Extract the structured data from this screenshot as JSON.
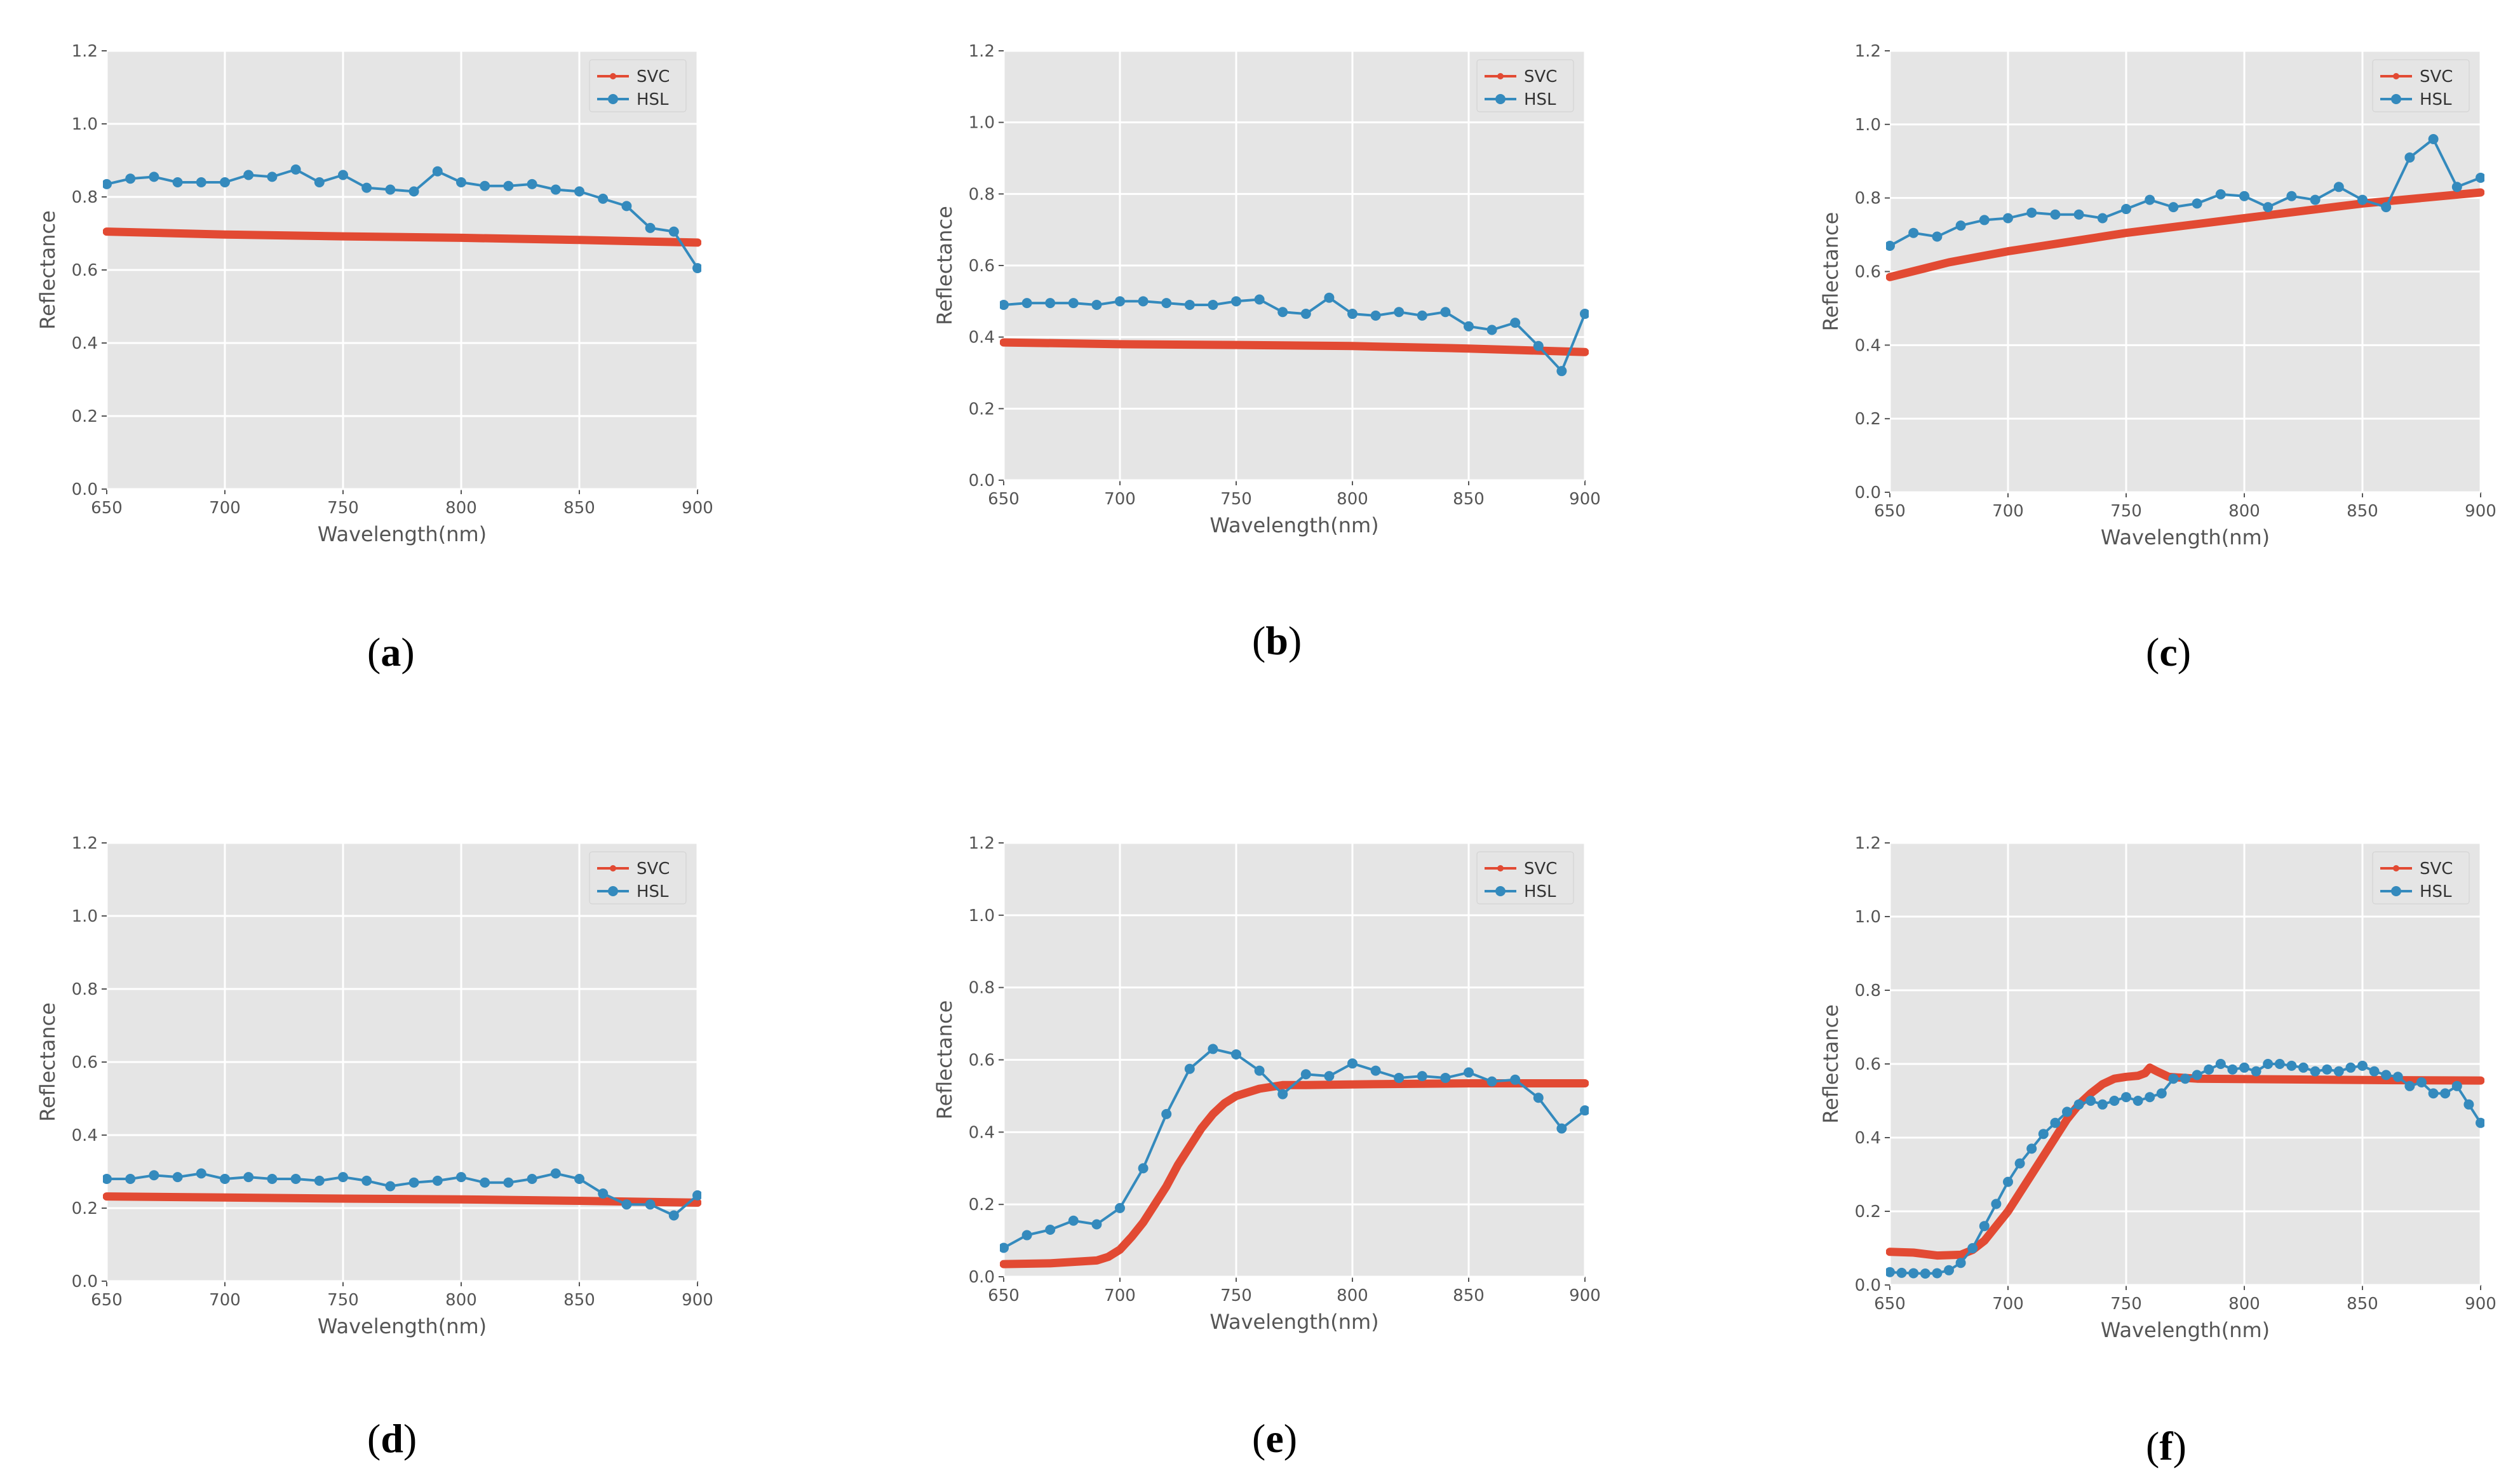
{
  "chart_data": [
    {
      "panel": "a",
      "type": "line",
      "title": "",
      "xlabel": "Wavelength(nm)",
      "ylabel": "Reflectance",
      "xlim": [
        650,
        900
      ],
      "ylim": [
        0.0,
        1.2
      ],
      "xticks": [
        "650",
        "700",
        "750",
        "800",
        "850",
        "900"
      ],
      "yticks": [
        "0.0",
        "0.2",
        "0.4",
        "0.6",
        "0.8",
        "1.0",
        "1.2"
      ],
      "grid": true,
      "legend_position": "top-right",
      "series": [
        {
          "name": "SVC",
          "color": "#e24a33",
          "style": "dense",
          "x": [
            650,
            700,
            750,
            800,
            850,
            900
          ],
          "y": [
            0.705,
            0.697,
            0.692,
            0.688,
            0.682,
            0.675
          ]
        },
        {
          "name": "HSL",
          "color": "#348abd",
          "style": "markers",
          "x": [
            650,
            660,
            670,
            680,
            690,
            700,
            710,
            720,
            730,
            740,
            750,
            760,
            770,
            780,
            790,
            800,
            810,
            820,
            830,
            840,
            850,
            860,
            870,
            880,
            890,
            900
          ],
          "y": [
            0.835,
            0.85,
            0.855,
            0.84,
            0.84,
            0.84,
            0.86,
            0.855,
            0.875,
            0.84,
            0.86,
            0.825,
            0.82,
            0.815,
            0.87,
            0.84,
            0.83,
            0.83,
            0.835,
            0.82,
            0.815,
            0.795,
            0.775,
            0.715,
            0.705,
            0.605
          ]
        }
      ]
    },
    {
      "panel": "b",
      "type": "line",
      "title": "",
      "xlabel": "Wavelength(nm)",
      "ylabel": "Reflectance",
      "xlim": [
        650,
        900
      ],
      "ylim": [
        0.0,
        1.2
      ],
      "xticks": [
        "650",
        "700",
        "750",
        "800",
        "850",
        "900"
      ],
      "yticks": [
        "0.0",
        "0.2",
        "0.4",
        "0.6",
        "0.8",
        "1.0",
        "1.2"
      ],
      "grid": true,
      "legend_position": "top-right",
      "series": [
        {
          "name": "SVC",
          "color": "#e24a33",
          "style": "dense",
          "x": [
            650,
            700,
            750,
            800,
            850,
            900
          ],
          "y": [
            0.385,
            0.38,
            0.378,
            0.375,
            0.368,
            0.358
          ]
        },
        {
          "name": "HSL",
          "color": "#348abd",
          "style": "markers",
          "x": [
            650,
            660,
            670,
            680,
            690,
            700,
            710,
            720,
            730,
            740,
            750,
            760,
            770,
            780,
            790,
            800,
            810,
            820,
            830,
            840,
            850,
            860,
            870,
            880,
            890,
            900
          ],
          "y": [
            0.49,
            0.495,
            0.495,
            0.495,
            0.49,
            0.5,
            0.5,
            0.495,
            0.49,
            0.49,
            0.5,
            0.505,
            0.47,
            0.465,
            0.51,
            0.465,
            0.46,
            0.47,
            0.46,
            0.47,
            0.43,
            0.42,
            0.44,
            0.375,
            0.305,
            0.465
          ]
        }
      ]
    },
    {
      "panel": "c",
      "type": "line",
      "title": "",
      "xlabel": "Wavelength(nm)",
      "ylabel": "Reflectance",
      "xlim": [
        650,
        900
      ],
      "ylim": [
        0.0,
        1.2
      ],
      "xticks": [
        "650",
        "700",
        "750",
        "800",
        "850",
        "900"
      ],
      "yticks": [
        "0.0",
        "0.2",
        "0.4",
        "0.6",
        "0.8",
        "1.0",
        "1.2"
      ],
      "grid": true,
      "legend_position": "top-right",
      "series": [
        {
          "name": "SVC",
          "color": "#e24a33",
          "style": "dense",
          "x": [
            650,
            675,
            700,
            725,
            750,
            775,
            800,
            825,
            850,
            875,
            900
          ],
          "y": [
            0.585,
            0.625,
            0.655,
            0.68,
            0.705,
            0.725,
            0.745,
            0.765,
            0.785,
            0.8,
            0.815
          ]
        },
        {
          "name": "HSL",
          "color": "#348abd",
          "style": "markers",
          "x": [
            650,
            660,
            670,
            680,
            690,
            700,
            710,
            720,
            730,
            740,
            750,
            760,
            770,
            780,
            790,
            800,
            810,
            820,
            830,
            840,
            850,
            860,
            870,
            880,
            890,
            900
          ],
          "y": [
            0.67,
            0.705,
            0.695,
            0.725,
            0.74,
            0.745,
            0.76,
            0.755,
            0.755,
            0.745,
            0.77,
            0.795,
            0.775,
            0.785,
            0.81,
            0.805,
            0.775,
            0.805,
            0.795,
            0.83,
            0.795,
            0.775,
            0.91,
            0.96,
            0.83,
            0.855
          ]
        }
      ]
    },
    {
      "panel": "d",
      "type": "line",
      "title": "",
      "xlabel": "Wavelength(nm)",
      "ylabel": "Reflectance",
      "xlim": [
        650,
        900
      ],
      "ylim": [
        0.0,
        1.2
      ],
      "xticks": [
        "650",
        "700",
        "750",
        "800",
        "850",
        "900"
      ],
      "yticks": [
        "0.0",
        "0.2",
        "0.4",
        "0.6",
        "0.8",
        "1.0",
        "1.2"
      ],
      "grid": true,
      "legend_position": "top-right",
      "series": [
        {
          "name": "SVC",
          "color": "#e24a33",
          "style": "dense",
          "x": [
            650,
            700,
            750,
            800,
            850,
            900
          ],
          "y": [
            0.232,
            0.229,
            0.226,
            0.224,
            0.22,
            0.215
          ]
        },
        {
          "name": "HSL",
          "color": "#348abd",
          "style": "markers",
          "x": [
            650,
            660,
            670,
            680,
            690,
            700,
            710,
            720,
            730,
            740,
            750,
            760,
            770,
            780,
            790,
            800,
            810,
            820,
            830,
            840,
            850,
            860,
            870,
            880,
            890,
            900
          ],
          "y": [
            0.28,
            0.28,
            0.29,
            0.285,
            0.295,
            0.28,
            0.285,
            0.28,
            0.28,
            0.275,
            0.285,
            0.275,
            0.26,
            0.27,
            0.275,
            0.285,
            0.27,
            0.27,
            0.28,
            0.295,
            0.28,
            0.24,
            0.21,
            0.21,
            0.18,
            0.235
          ]
        }
      ]
    },
    {
      "panel": "e",
      "type": "line",
      "title": "",
      "xlabel": "Wavelength(nm)",
      "ylabel": "Reflectance",
      "xlim": [
        650,
        900
      ],
      "ylim": [
        0.0,
        1.2
      ],
      "xticks": [
        "650",
        "700",
        "750",
        "800",
        "850",
        "900"
      ],
      "yticks": [
        "0.0",
        "0.2",
        "0.4",
        "0.6",
        "0.8",
        "1.0",
        "1.2"
      ],
      "grid": true,
      "legend_position": "top-right",
      "series": [
        {
          "name": "SVC",
          "color": "#e24a33",
          "style": "dense",
          "x": [
            650,
            670,
            690,
            695,
            700,
            705,
            710,
            715,
            720,
            725,
            730,
            735,
            740,
            745,
            750,
            755,
            760,
            770,
            780,
            800,
            850,
            900
          ],
          "y": [
            0.035,
            0.037,
            0.045,
            0.055,
            0.075,
            0.11,
            0.15,
            0.2,
            0.25,
            0.31,
            0.36,
            0.41,
            0.45,
            0.48,
            0.5,
            0.51,
            0.52,
            0.53,
            0.53,
            0.532,
            0.535,
            0.535
          ]
        },
        {
          "name": "HSL",
          "color": "#348abd",
          "style": "markers",
          "x": [
            650,
            660,
            670,
            680,
            690,
            700,
            710,
            720,
            730,
            740,
            750,
            760,
            770,
            780,
            790,
            800,
            810,
            820,
            830,
            840,
            850,
            860,
            870,
            880,
            890,
            900
          ],
          "y": [
            0.08,
            0.115,
            0.13,
            0.155,
            0.145,
            0.19,
            0.3,
            0.45,
            0.575,
            0.63,
            0.615,
            0.57,
            0.505,
            0.56,
            0.555,
            0.59,
            0.57,
            0.55,
            0.555,
            0.55,
            0.565,
            0.54,
            0.545,
            0.495,
            0.41,
            0.46
          ]
        }
      ]
    },
    {
      "panel": "f",
      "type": "line",
      "title": "",
      "xlabel": "Wavelength(nm)",
      "ylabel": "Reflectance",
      "xlim": [
        650,
        900
      ],
      "ylim": [
        0.0,
        1.2
      ],
      "xticks": [
        "650",
        "700",
        "750",
        "800",
        "850",
        "900"
      ],
      "yticks": [
        "0.0",
        "0.2",
        "0.4",
        "0.6",
        "0.8",
        "1.0",
        "1.2"
      ],
      "grid": true,
      "legend_position": "top-right",
      "series": [
        {
          "name": "SVC",
          "color": "#e24a33",
          "style": "dense",
          "x": [
            650,
            660,
            670,
            680,
            685,
            690,
            695,
            700,
            705,
            710,
            715,
            720,
            725,
            730,
            735,
            740,
            745,
            750,
            755,
            758,
            760,
            763,
            768,
            780,
            820,
            860,
            900
          ],
          "y": [
            0.09,
            0.088,
            0.08,
            0.082,
            0.095,
            0.12,
            0.16,
            0.2,
            0.25,
            0.3,
            0.35,
            0.4,
            0.45,
            0.49,
            0.52,
            0.545,
            0.56,
            0.565,
            0.568,
            0.575,
            0.59,
            0.58,
            0.565,
            0.56,
            0.558,
            0.556,
            0.555
          ]
        },
        {
          "name": "HSL",
          "color": "#348abd",
          "style": "markers",
          "x": [
            650,
            655,
            660,
            665,
            670,
            675,
            680,
            685,
            690,
            695,
            700,
            705,
            710,
            715,
            720,
            725,
            730,
            735,
            740,
            745,
            750,
            755,
            760,
            765,
            770,
            775,
            780,
            785,
            790,
            795,
            800,
            805,
            810,
            815,
            820,
            825,
            830,
            835,
            840,
            845,
            850,
            855,
            860,
            865,
            870,
            875,
            880,
            885,
            890,
            895,
            900
          ],
          "y": [
            0.035,
            0.033,
            0.032,
            0.031,
            0.032,
            0.04,
            0.06,
            0.1,
            0.16,
            0.22,
            0.28,
            0.33,
            0.37,
            0.41,
            0.44,
            0.47,
            0.49,
            0.5,
            0.49,
            0.5,
            0.51,
            0.5,
            0.51,
            0.52,
            0.56,
            0.56,
            0.57,
            0.585,
            0.6,
            0.585,
            0.59,
            0.58,
            0.6,
            0.6,
            0.595,
            0.59,
            0.58,
            0.585,
            0.58,
            0.59,
            0.595,
            0.58,
            0.57,
            0.565,
            0.54,
            0.55,
            0.52,
            0.52,
            0.54,
            0.49,
            0.44
          ]
        }
      ]
    }
  ],
  "panel_labels": [
    {
      "open": "(",
      "letter": "a",
      "close": ")"
    },
    {
      "open": "(",
      "letter": "b",
      "close": ")"
    },
    {
      "open": "(",
      "letter": "c",
      "close": ")"
    },
    {
      "open": "(",
      "letter": "d",
      "close": ")"
    },
    {
      "open": "(",
      "letter": "e",
      "close": ")"
    },
    {
      "open": "(",
      "letter": "f",
      "close": ")"
    }
  ]
}
